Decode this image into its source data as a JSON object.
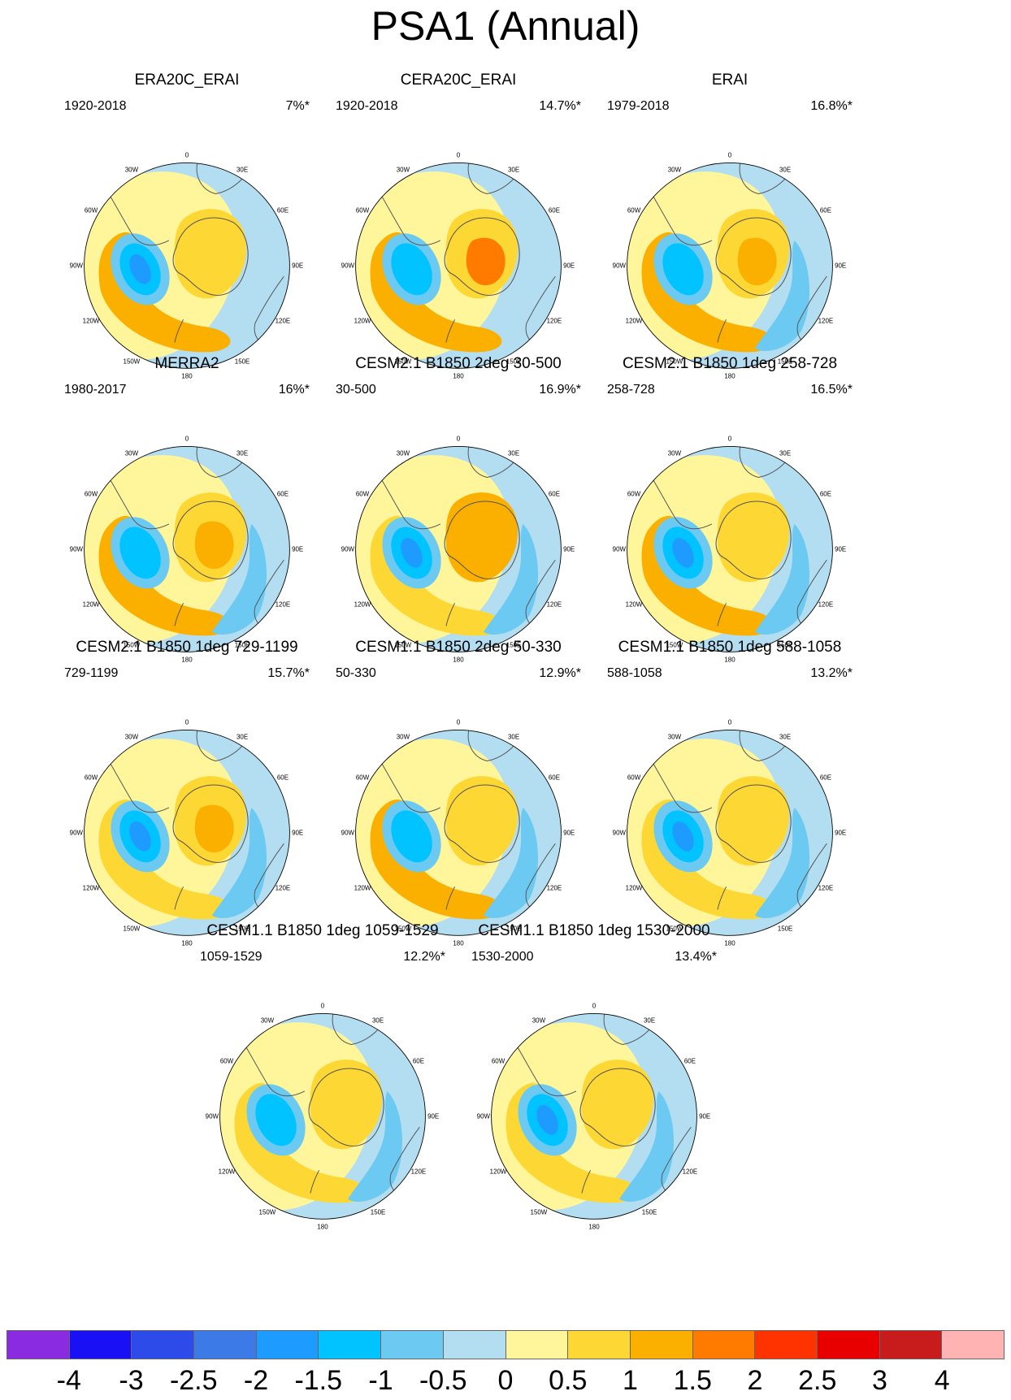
{
  "figure_title": "PSA1 (Annual)",
  "lon_labels": [
    "0",
    "30E",
    "60E",
    "90E",
    "120E",
    "150E",
    "180",
    "150W",
    "120W",
    "90W",
    "60W",
    "30W"
  ],
  "colors": {
    "land_outline": "#555555",
    "ocean_background": "#b3def2",
    "palette": [
      "#8a2be2",
      "#1a10f5",
      "#2d4be8",
      "#3c7ae8",
      "#1e9bff",
      "#00c3ff",
      "#6ccaf2",
      "#b3def2",
      "#fff59a",
      "#fdd835",
      "#fbb000",
      "#ff7b00",
      "#ff3300",
      "#e80000",
      "#c81b1b",
      "#ffb3b3"
    ]
  },
  "colorbar": {
    "labels": [
      "-4",
      "-3",
      "-2.5",
      "-2",
      "-1.5",
      "-1",
      "-0.5",
      "0",
      "0.5",
      "1",
      "1.5",
      "2",
      "2.5",
      "3",
      "4"
    ]
  },
  "panels": [
    {
      "title": "ERA20C_ERAI",
      "period": "1920-2018",
      "variance": "7%*"
    },
    {
      "title": "CERA20C_ERAI",
      "period": "1920-2018",
      "variance": "14.7%*"
    },
    {
      "title": "ERAI",
      "period": "1979-2018",
      "variance": "16.8%*"
    },
    {
      "title": "MERRA2",
      "period": "1980-2017",
      "variance": "16%*"
    },
    {
      "title": "CESM2.1 B1850 2deg 30-500",
      "period": "30-500",
      "variance": "16.9%*"
    },
    {
      "title": "CESM2.1 B1850 1deg 258-728",
      "period": "258-728",
      "variance": "16.5%*"
    },
    {
      "title": "CESM2.1 B1850 1deg 729-1199",
      "period": "729-1199",
      "variance": "15.7%*"
    },
    {
      "title": "CESM1.1 B1850 2deg 50-330",
      "period": "50-330",
      "variance": "12.9%*"
    },
    {
      "title": "CESM1.1 B1850 1deg 588-1058",
      "period": "588-1058",
      "variance": "13.2%*"
    },
    {
      "title": "CESM1.1 B1850 1deg 1059-1529",
      "period": "1059-1529",
      "variance": "12.2%*"
    },
    {
      "title": "CESM1.1 B1850 1deg 1530-2000",
      "period": "1530-2000",
      "variance": "13.4%*"
    }
  ]
}
